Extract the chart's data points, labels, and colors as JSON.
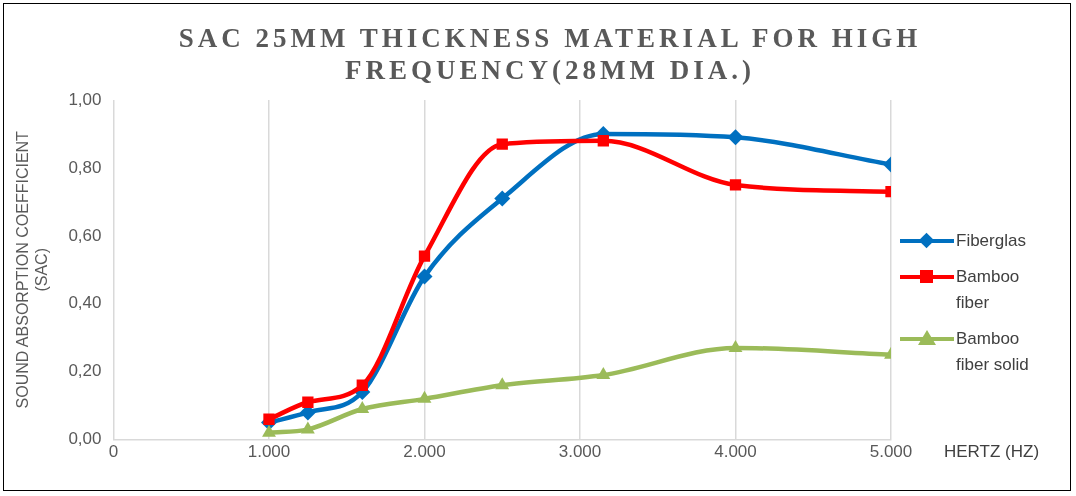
{
  "chart_data": {
    "type": "line",
    "title": "SAC 25MM THICKNESS MATERIAL FOR HIGH FREQUENCY(28MM DIA.)",
    "xlabel": "HERTZ (HZ)",
    "ylabel": "SOUND ABSORPTION COEFFICIENT (SAC)",
    "x": [
      1000,
      1250,
      1600,
      2000,
      2500,
      3150,
      4000,
      5000
    ],
    "series": [
      {
        "name": "Fiberglas",
        "color": "#0070c0",
        "marker": "diamond",
        "values": [
          0.05,
          0.08,
          0.14,
          0.48,
          0.71,
          0.9,
          0.89,
          0.81
        ]
      },
      {
        "name": "Bamboo fiber",
        "color": "#ff0000",
        "marker": "square",
        "values": [
          0.06,
          0.11,
          0.16,
          0.54,
          0.87,
          0.88,
          0.75,
          0.73
        ]
      },
      {
        "name": "Bamboo fiber solid",
        "color": "#9bbb59",
        "marker": "triangle",
        "values": [
          0.02,
          0.03,
          0.09,
          0.12,
          0.16,
          0.19,
          0.27,
          0.25
        ]
      }
    ],
    "xlim": [
      0,
      5000
    ],
    "xticks": [
      0,
      {
        "value": 1000,
        "label": "1.000"
      },
      {
        "value": 2000,
        "label": "2.000"
      },
      {
        "value": 3000,
        "label": "3.000"
      },
      {
        "value": 4000,
        "label": "4.000"
      },
      {
        "value": 5000,
        "label": "5.000"
      }
    ],
    "ylim": [
      0,
      1
    ],
    "yticks": [
      {
        "value": 0,
        "label": "0,00"
      },
      {
        "value": 0.2,
        "label": "0,20"
      },
      {
        "value": 0.4,
        "label": "0,40"
      },
      {
        "value": 0.6,
        "label": "0,60"
      },
      {
        "value": 0.8,
        "label": "0,80"
      },
      {
        "value": 1,
        "label": "1,00"
      }
    ],
    "grid": "x",
    "legend": "right",
    "line_style": "solid"
  }
}
